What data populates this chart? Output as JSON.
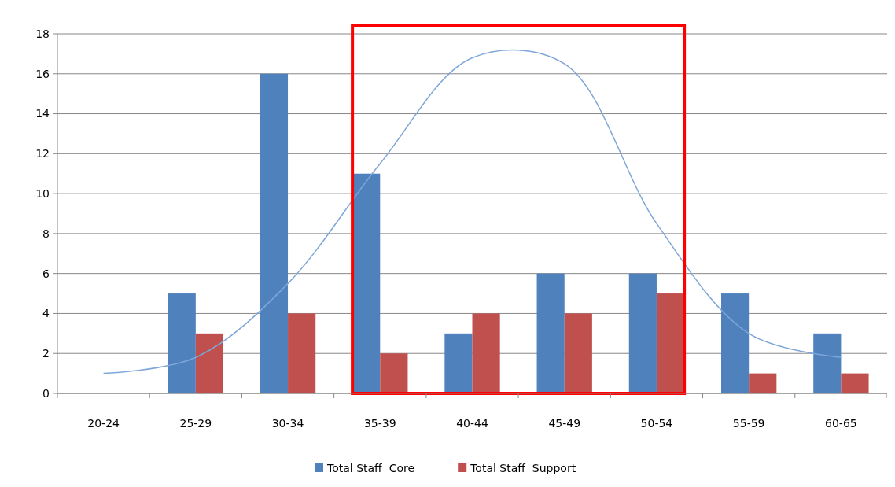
{
  "chart_data": {
    "type": "bar",
    "categories": [
      "20-24",
      "25-29",
      "30-34",
      "35-39",
      "40-44",
      "45-49",
      "50-54",
      "55-59",
      "60-65"
    ],
    "series": [
      {
        "name": "Total Staff  Core",
        "color": "#4f81bd",
        "values": [
          null,
          5,
          16,
          11,
          3,
          6,
          6,
          5,
          3
        ]
      },
      {
        "name": "Total Staff  Support",
        "color": "#c0504d",
        "values": [
          null,
          3,
          4,
          2,
          4,
          4,
          5,
          1,
          1
        ]
      },
      {
        "type": "line",
        "color": "#7ea6d8",
        "values": [
          1.0,
          1.8,
          5.5,
          11.5,
          16.8,
          16.5,
          8.5,
          3.0,
          1.8
        ]
      }
    ],
    "ylim": [
      0,
      18
    ],
    "yticks": [
      0,
      2,
      4,
      6,
      8,
      10,
      12,
      14,
      16,
      18
    ],
    "grid": "y",
    "legend": "bottom"
  }
}
